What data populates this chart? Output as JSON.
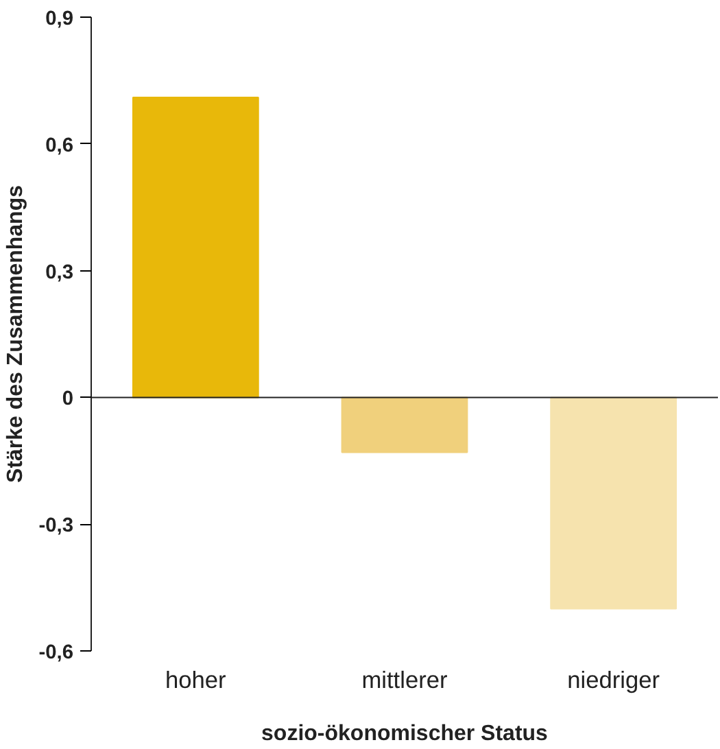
{
  "chart_data": {
    "type": "bar",
    "xlabel": "sozio-ökonomischer Status",
    "ylabel": "Stärke des Zusammenhangs",
    "categories": [
      "hoher",
      "mittlerer",
      "niedriger"
    ],
    "values": [
      0.71,
      -0.13,
      -0.5
    ],
    "colors": [
      "#e8b80a",
      "#f0d07c",
      "#f6e3ae"
    ],
    "ylim": [
      -0.6,
      0.9
    ],
    "yticks": [
      {
        "value": -0.6,
        "label": "-0,6"
      },
      {
        "value": -0.3,
        "label": "-0,3"
      },
      0,
      {
        "value": 0.3,
        "label": "0,3"
      },
      {
        "value": 0.6,
        "label": "0,6"
      },
      {
        "value": 0.9,
        "label": "0,9"
      }
    ],
    "ref_lines": [
      {
        "axis": "y",
        "value": 0,
        "color": "#222222"
      }
    ]
  }
}
